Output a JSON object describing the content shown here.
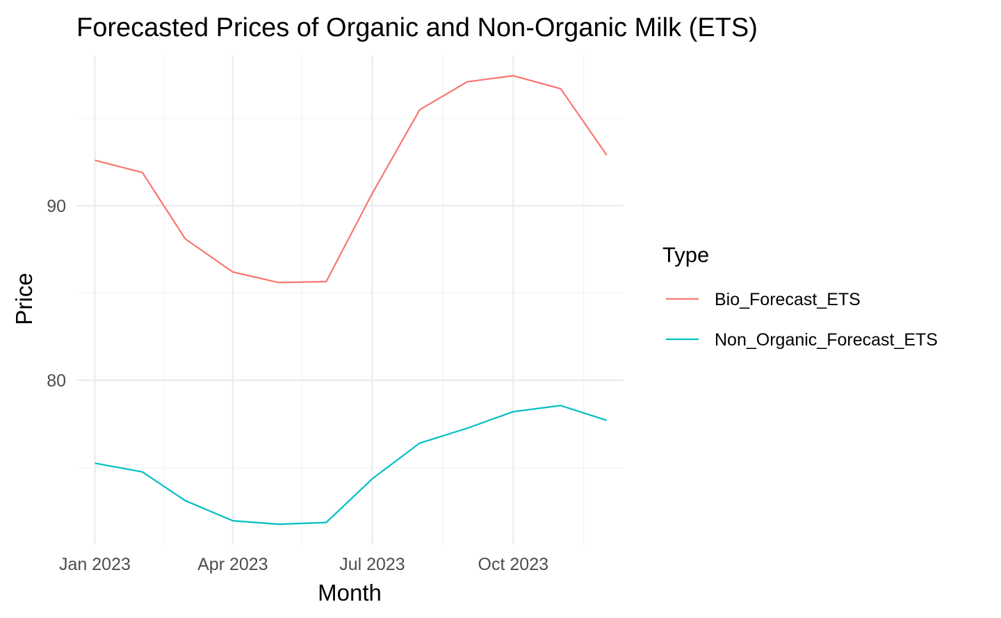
{
  "chart_data": {
    "type": "line",
    "title": "Forecasted Prices of Organic and Non-Organic Milk (ETS)",
    "xlabel": "Month",
    "ylabel": "Price",
    "x": [
      "2023-01",
      "2023-02",
      "2023-03",
      "2023-04",
      "2023-05",
      "2023-06",
      "2023-07",
      "2023-08",
      "2023-09",
      "2023-10",
      "2023-11",
      "2023-12"
    ],
    "xticks": [
      {
        "date": "2023-01",
        "label": "Jan 2023"
      },
      {
        "date": "2023-04",
        "label": "Apr 2023"
      },
      {
        "date": "2023-07",
        "label": "Jul 2023"
      },
      {
        "date": "2023-10",
        "label": "Oct 2023"
      }
    ],
    "xminor": [
      "2023-02-15",
      "2023-05-16",
      "2023-08-16",
      "2023-11-16"
    ],
    "xlim": [
      "2022-12-20",
      "2023-12-12"
    ],
    "ylim": [
      70.6,
      98.6
    ],
    "yticks": [
      80,
      90
    ],
    "yminor": [
      75,
      85,
      95
    ],
    "grid": true,
    "legend": {
      "title": "Type",
      "position": "right"
    },
    "series": [
      {
        "name": "Bio_Forecast_ETS",
        "color": "#F8766D",
        "values": [
          92.6,
          91.9,
          88.1,
          86.2,
          85.6,
          85.65,
          90.7,
          95.5,
          97.1,
          97.45,
          96.7,
          92.9
        ]
      },
      {
        "name": "Non_Organic_Forecast_ETS",
        "color": "#00BFC4",
        "values": [
          75.25,
          74.75,
          73.1,
          71.95,
          71.75,
          71.85,
          74.35,
          76.4,
          77.25,
          78.2,
          78.55,
          77.7
        ]
      }
    ]
  }
}
